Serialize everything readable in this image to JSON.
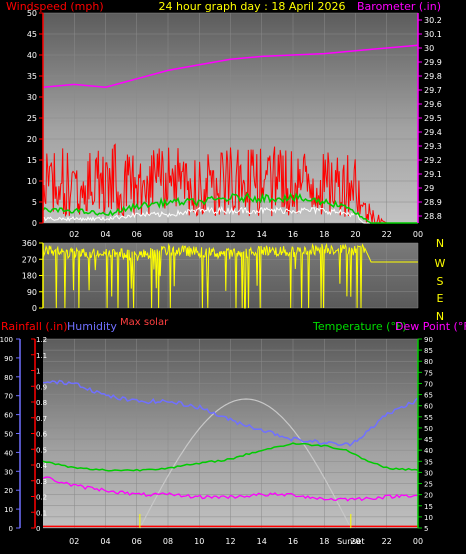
{
  "colors": {
    "background": "#000000",
    "wind": "#ff0000",
    "gust_avg": "#00cc00",
    "wind_low": "#ffffff",
    "barometer": "#ff00ff",
    "direction": "#ffff00",
    "rainfall": "#ff0000",
    "humidity": "#7070ff",
    "temperature": "#00cc00",
    "dewpoint": "#ff00ff",
    "solar": "#c8c8c8",
    "axis_text": "#ffffff"
  },
  "chart_data": [
    {
      "type": "line",
      "title": "24 hour graph day : 18 April 2026",
      "left_label": "Windspeed (mph)",
      "right_label": "Barometer (.in)",
      "left_ticks": [
        "0",
        "5",
        "10",
        "15",
        "20",
        "25",
        "30",
        "35",
        "40",
        "45",
        "50"
      ],
      "right_ticks": [
        "28.8",
        "28.9",
        "29",
        "29.1",
        "29.2",
        "29.3",
        "29.4",
        "29.5",
        "29.6",
        "29.7",
        "29.8",
        "29.9",
        "30",
        "30.1",
        "30.2"
      ],
      "x_ticks": [
        "02",
        "04",
        "06",
        "08",
        "10",
        "12",
        "14",
        "16",
        "18",
        "20",
        "22",
        "00"
      ],
      "ylim_left": [
        0,
        50
      ],
      "ylim_right": [
        28.75,
        30.25
      ],
      "series": [
        {
          "key": "barometer",
          "axis": "right",
          "x": [
            0,
            2,
            4,
            6,
            8,
            10,
            12,
            14,
            16,
            18,
            20,
            22,
            24
          ],
          "values": [
            29.72,
            29.74,
            29.72,
            29.78,
            29.84,
            29.88,
            29.92,
            29.94,
            29.95,
            29.96,
            29.98,
            30.0,
            30.02
          ]
        },
        {
          "key": "wind",
          "axis": "left",
          "x": [
            0,
            2,
            4,
            6,
            8,
            10,
            12,
            14,
            16,
            18,
            20,
            20.5,
            21.5,
            22,
            24
          ],
          "values": [
            9,
            10,
            11,
            9,
            10,
            9,
            10,
            10,
            10,
            9,
            10,
            3,
            1,
            0,
            0
          ]
        },
        {
          "key": "gust_avg",
          "axis": "left",
          "x": [
            0,
            2,
            4,
            6,
            8,
            10,
            12,
            14,
            16,
            18,
            19.5,
            20.5,
            21,
            22,
            24
          ],
          "values": [
            3,
            3,
            2,
            4,
            5,
            5,
            6,
            6,
            6,
            5,
            4,
            1,
            0,
            0,
            0
          ]
        },
        {
          "key": "wind_low",
          "axis": "left",
          "x": [
            0,
            2,
            4,
            6,
            8,
            10,
            12,
            14,
            16,
            18,
            20,
            20.5,
            24
          ],
          "values": [
            1,
            1,
            1,
            2,
            2,
            3,
            3,
            3,
            3,
            3,
            2,
            0,
            0
          ]
        }
      ]
    },
    {
      "type": "line",
      "left_ticks": [
        "0",
        "90",
        "180",
        "270",
        "360"
      ],
      "right_labels": [
        "N",
        "W",
        "S",
        "E",
        "N"
      ],
      "ylim": [
        0,
        360
      ],
      "series": [
        {
          "key": "direction",
          "x": [
            0,
            2,
            4,
            6,
            8,
            10,
            12,
            14,
            16,
            18,
            20,
            20.6,
            21,
            24
          ],
          "values": [
            320,
            300,
            310,
            290,
            320,
            310,
            300,
            320,
            310,
            330,
            320,
            330,
            255,
            255
          ]
        }
      ]
    },
    {
      "type": "line",
      "max_solar_label": "Max solar",
      "rain_label": "Rainfall (.in)",
      "humidity_label": "Humidity",
      "temperature_label": "Temperature (°F)",
      "dewpoint_label": "Dew Point (°F)",
      "rain_ticks": [
        "0",
        "0.1",
        "0.2",
        "0.3",
        "0.4",
        "0.5",
        "0.6",
        "0.7",
        "0.8",
        "0.9",
        "1",
        "1.1",
        "1.2"
      ],
      "humidity_ticks": [
        "0",
        "10",
        "20",
        "30",
        "40",
        "50",
        "60",
        "70",
        "80",
        "90",
        "100"
      ],
      "temp_ticks": [
        "5",
        "10",
        "15",
        "20",
        "25",
        "30",
        "35",
        "40",
        "45",
        "50",
        "55",
        "60",
        "65",
        "70",
        "75",
        "80",
        "85",
        "90"
      ],
      "x_ticks": [
        "02",
        "04",
        "06",
        "08",
        "10",
        "12",
        "14",
        "16",
        "18",
        "20",
        "22",
        "00"
      ],
      "sunrise_label": "Sunrise",
      "sunset_label": "Sunset",
      "ylim_rain": [
        0,
        1.2
      ],
      "ylim_humidity": [
        0,
        100
      ],
      "ylim_temp": [
        5,
        90
      ],
      "sunrise_hour": 6.2,
      "sunset_hour": 19.7,
      "solar_peak_hour": 13,
      "solar_peak_temp": 63,
      "series": [
        {
          "key": "humidity",
          "axis": "humidity",
          "x": [
            0,
            2,
            4,
            6,
            8,
            10,
            12,
            14,
            16,
            18,
            19.5,
            20,
            22,
            24
          ],
          "values": [
            77,
            77,
            70,
            67,
            67,
            64,
            57,
            52,
            47,
            45,
            44,
            46,
            60,
            68
          ]
        },
        {
          "key": "temperature",
          "axis": "temp",
          "x": [
            0,
            2,
            4,
            6,
            8,
            10,
            12,
            14,
            16,
            18,
            19.5,
            20.5,
            22,
            24
          ],
          "values": [
            35,
            32,
            31,
            31,
            32,
            34,
            36,
            40,
            43,
            42,
            40,
            36,
            32,
            31
          ]
        },
        {
          "key": "dewpoint",
          "axis": "temp",
          "x": [
            0,
            2,
            4,
            6,
            8,
            10,
            12,
            14,
            16,
            18,
            20,
            22,
            24
          ],
          "values": [
            28,
            24,
            22,
            20,
            20,
            19,
            19,
            20,
            20,
            18,
            18,
            19,
            20
          ]
        },
        {
          "key": "rainfall",
          "axis": "rain",
          "x": [
            0,
            2,
            4,
            6,
            8,
            10,
            12,
            14,
            16,
            18,
            20,
            22,
            24
          ],
          "values": [
            0.01,
            0.01,
            0.01,
            0.01,
            0.01,
            0.01,
            0.01,
            0.01,
            0.01,
            0.01,
            0.01,
            0.01,
            0.01
          ]
        }
      ]
    }
  ]
}
